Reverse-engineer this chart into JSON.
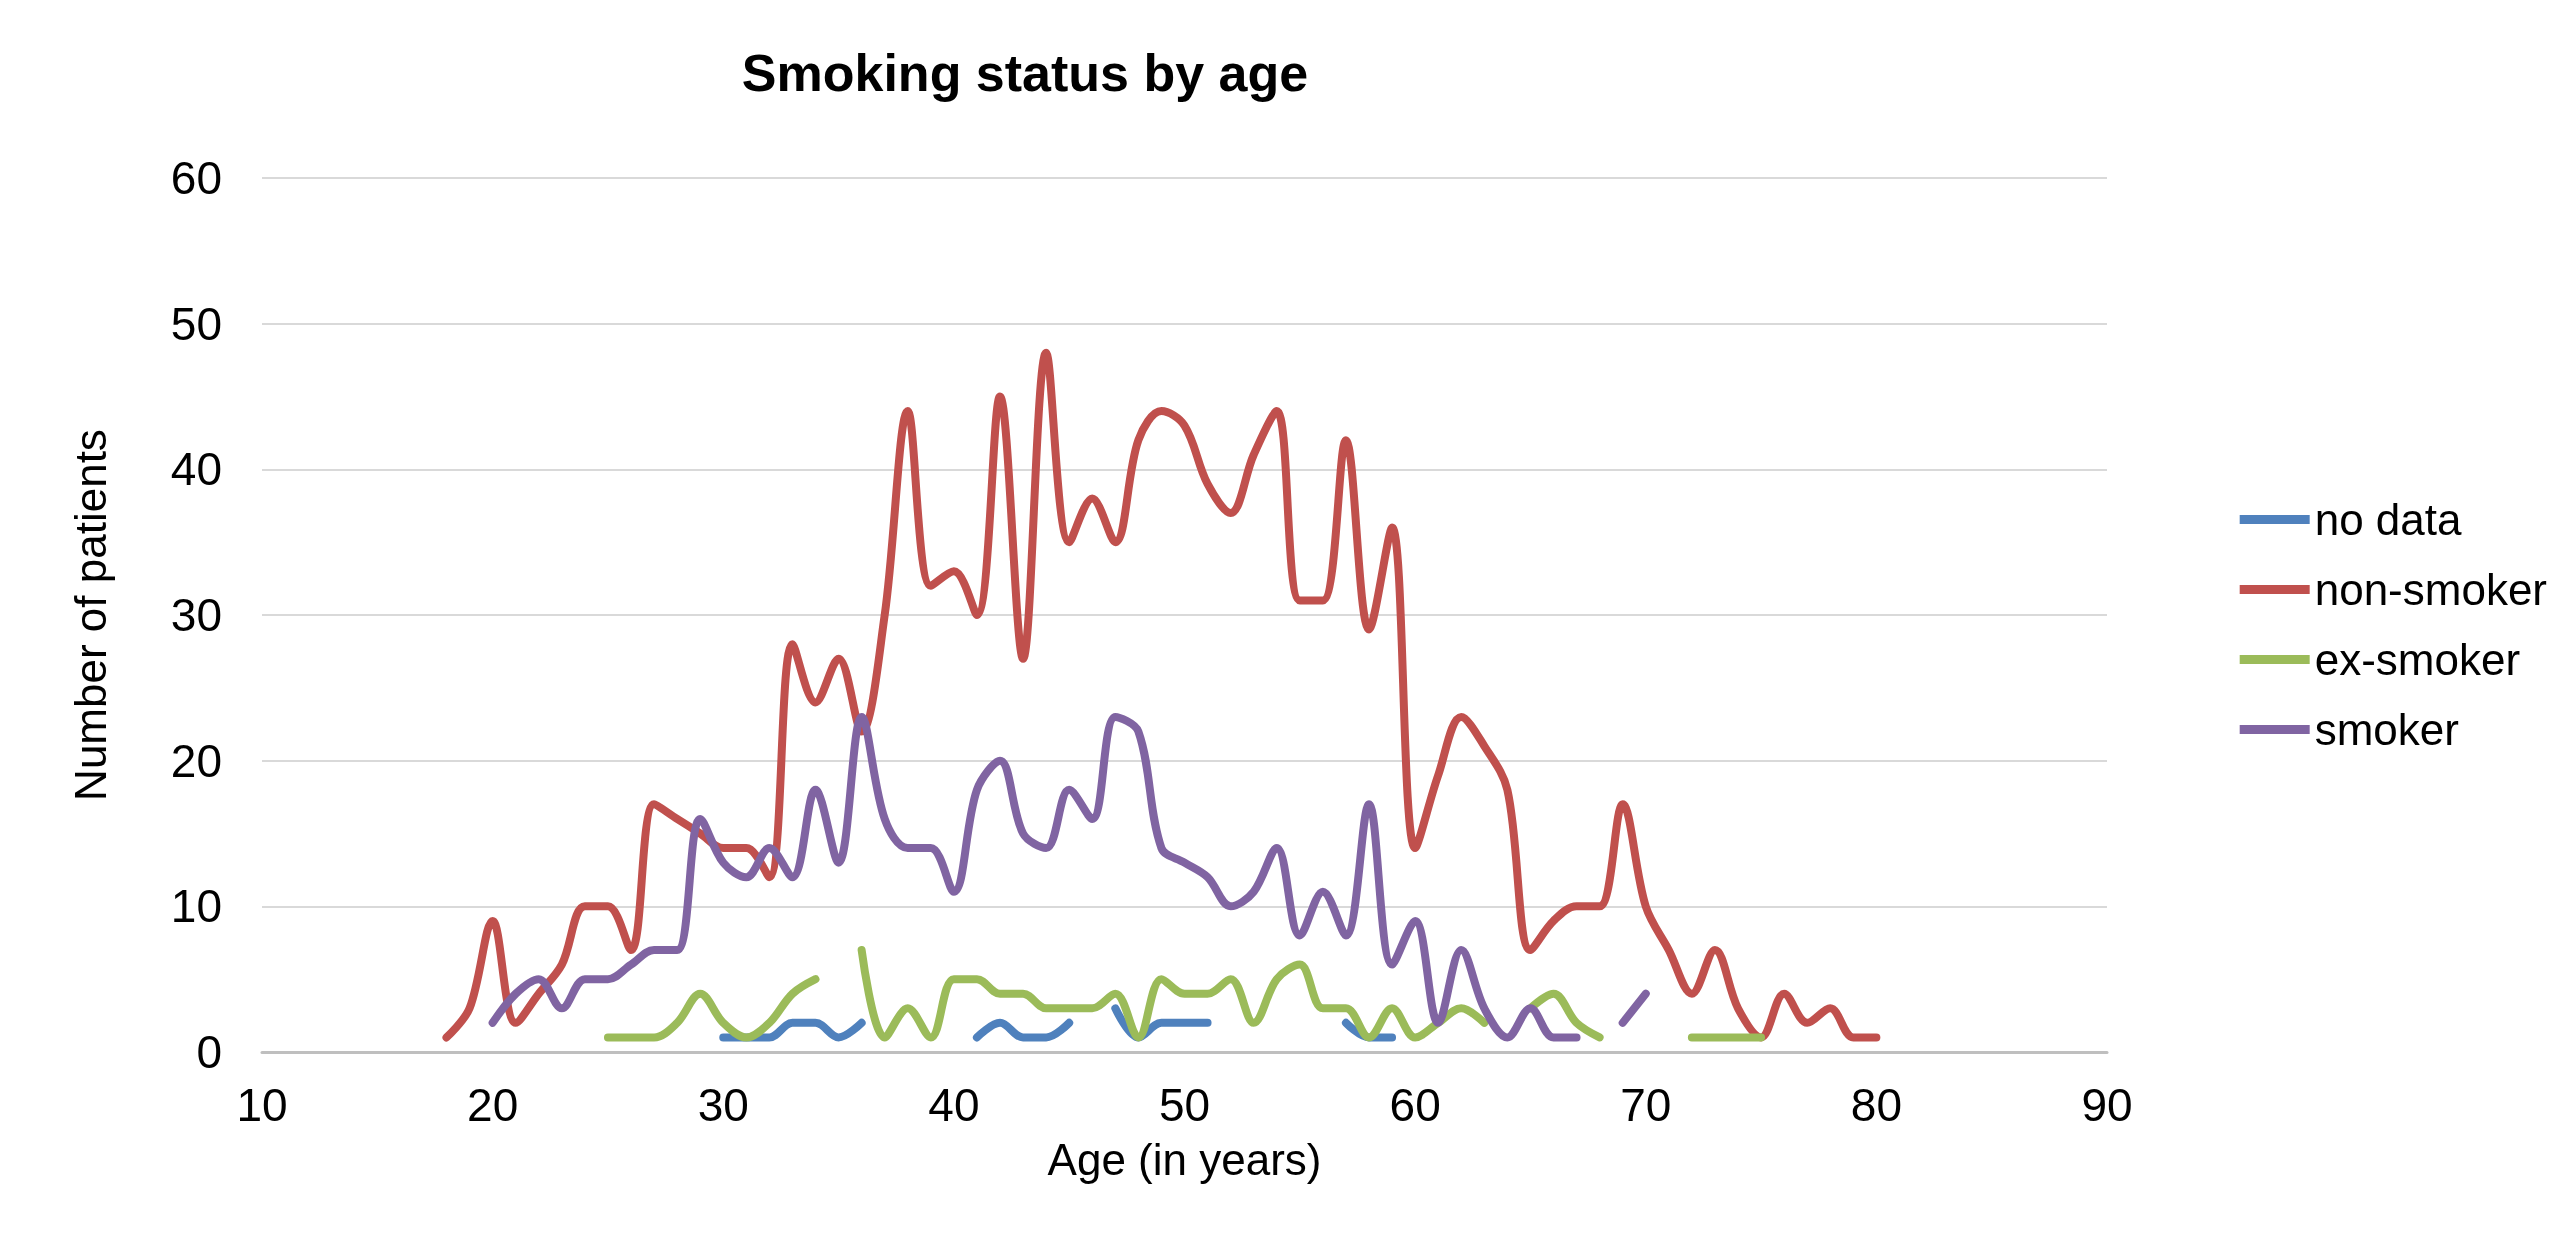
{
  "chart_data": {
    "type": "line",
    "title": "Smoking status by age",
    "xlabel": "Age (in years)",
    "ylabel": "Number of patients",
    "x": [
      18,
      19,
      20,
      21,
      22,
      23,
      24,
      25,
      26,
      27,
      28,
      29,
      30,
      31,
      32,
      33,
      34,
      35,
      36,
      37,
      38,
      39,
      40,
      41,
      42,
      43,
      44,
      45,
      46,
      47,
      48,
      49,
      50,
      51,
      52,
      53,
      54,
      55,
      56,
      57,
      58,
      59,
      60,
      61,
      62,
      63,
      64,
      65,
      66,
      67,
      68,
      69,
      70,
      71,
      72,
      73,
      74,
      75,
      76,
      77,
      78,
      79,
      80
    ],
    "series": [
      {
        "name": "no data",
        "color": "#4f81bd",
        "values": [
          null,
          null,
          null,
          null,
          null,
          null,
          null,
          null,
          null,
          null,
          null,
          null,
          1,
          1,
          1,
          2,
          2,
          1,
          2,
          null,
          null,
          null,
          null,
          1,
          2,
          1,
          1,
          2,
          null,
          3,
          1,
          2,
          2,
          2,
          null,
          null,
          null,
          null,
          null,
          2,
          1,
          1,
          null,
          null,
          null,
          null,
          null,
          null,
          null,
          null,
          null,
          null,
          null,
          null,
          null,
          null,
          null,
          null,
          null,
          null,
          null,
          null,
          null
        ]
      },
      {
        "name": "non-smoker",
        "color": "#c0504d",
        "values": [
          1,
          3,
          9,
          2,
          4,
          6,
          10,
          10,
          7,
          17,
          16,
          15,
          14,
          14,
          12,
          28,
          24,
          27,
          22,
          30,
          44,
          32,
          33,
          30,
          45,
          27,
          48,
          35,
          38,
          35,
          42,
          44,
          43,
          39,
          37,
          41,
          44,
          31,
          31,
          42,
          29,
          36,
          14,
          19,
          23,
          21,
          18,
          7,
          9,
          10,
          10,
          17,
          10,
          7,
          4,
          7,
          3,
          1,
          4,
          2,
          3,
          1,
          1
        ]
      },
      {
        "name": "ex-smoker",
        "color": "#9bbb59",
        "values": [
          null,
          null,
          null,
          null,
          null,
          null,
          null,
          1,
          1,
          1,
          2,
          4,
          2,
          1,
          2,
          4,
          5,
          null,
          7,
          1,
          3,
          1,
          5,
          5,
          4,
          4,
          3,
          3,
          3,
          4,
          1,
          5,
          4,
          4,
          5,
          2,
          5,
          6,
          3,
          3,
          1,
          3,
          1,
          2,
          3,
          2,
          null,
          3,
          4,
          2,
          1,
          null,
          null,
          null,
          1,
          1,
          1,
          1,
          null,
          null,
          null,
          null,
          null
        ]
      },
      {
        "name": "smoker",
        "color": "#8064a2",
        "values": [
          null,
          null,
          2,
          4,
          5,
          3,
          5,
          5,
          6,
          7,
          7,
          16,
          13,
          12,
          14,
          12,
          18,
          13,
          23,
          16,
          14,
          14,
          11,
          18,
          20,
          15,
          14,
          18,
          16,
          23,
          22,
          14,
          13,
          12,
          10,
          11,
          14,
          8,
          11,
          8,
          17,
          6,
          9,
          2,
          7,
          3,
          1,
          3,
          1,
          1,
          null,
          2,
          4,
          null,
          null,
          null,
          null,
          null,
          null,
          null,
          null,
          null,
          null
        ]
      }
    ],
    "xlim": [
      10,
      90
    ],
    "xticks": [
      10,
      20,
      30,
      40,
      50,
      60,
      70,
      80,
      90
    ],
    "ylim": [
      0,
      60
    ],
    "yticks": [
      0,
      10,
      20,
      30,
      40,
      50,
      60
    ],
    "grid": "y",
    "legend": "right",
    "marker": "none",
    "line_style": "solid"
  }
}
